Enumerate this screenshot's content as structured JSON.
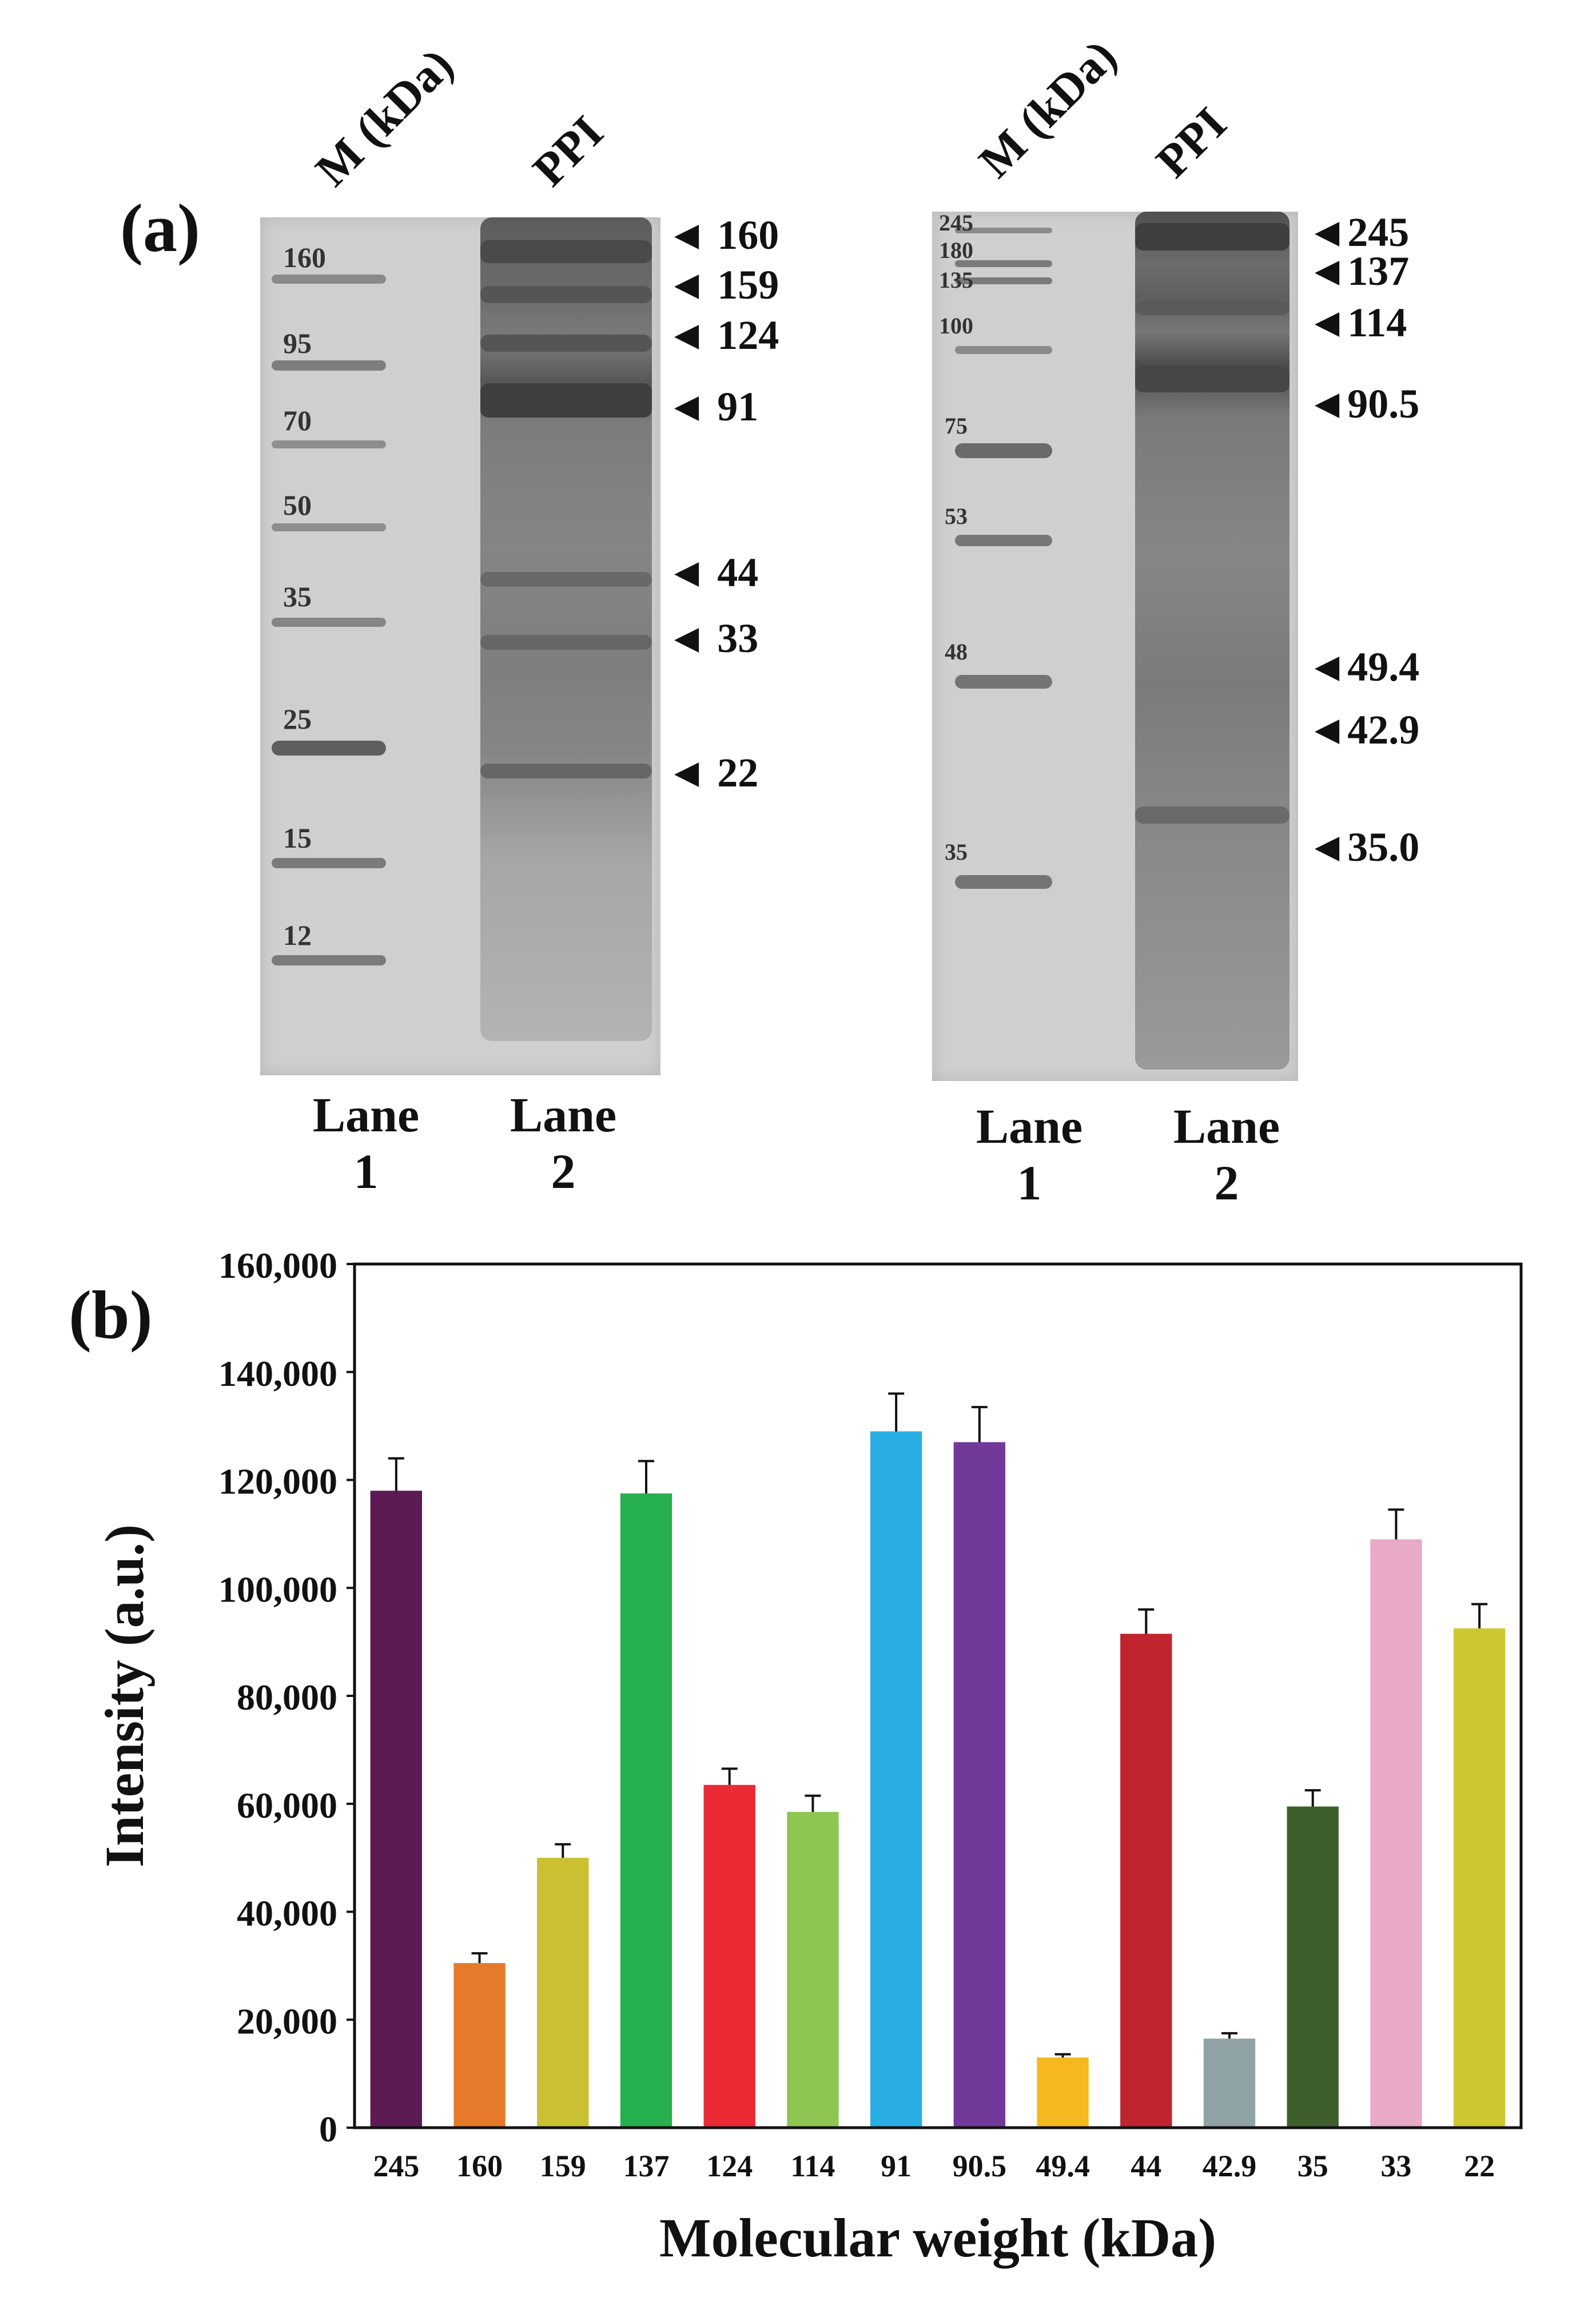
{
  "panel_a": {
    "label": "(a)",
    "gel1": {
      "lane_headers": [
        "M (kDa)",
        "PPI"
      ],
      "marker_labels": [
        "160",
        "95",
        "70",
        "50",
        "35",
        "25",
        "15",
        "12"
      ],
      "band_annotations": [
        "160",
        "159",
        "124",
        "91",
        "44",
        "33",
        "22"
      ],
      "lane_footers": [
        {
          "line1": "Lane",
          "line2": "1"
        },
        {
          "line1": "Lane",
          "line2": "2"
        }
      ]
    },
    "gel2": {
      "lane_headers": [
        "M (kDa)",
        "PPI"
      ],
      "marker_labels": [
        "245",
        "180",
        "135",
        "100",
        "75",
        "53",
        "48",
        "35"
      ],
      "band_annotations": [
        "245",
        "137",
        "114",
        "90.5",
        "49.4",
        "42.9",
        "35.0"
      ],
      "lane_footers": [
        {
          "line1": "Lane",
          "line2": "1"
        },
        {
          "line1": "Lane",
          "line2": "2"
        }
      ]
    },
    "arrow_glyph": "◄"
  },
  "panel_b": {
    "label": "(b)"
  },
  "chart_data": {
    "type": "bar",
    "title": "",
    "xlabel": "Molecular weight (kDa)",
    "ylabel": "Intensity (a.u.)",
    "ylim": [
      0,
      160000
    ],
    "yticks": [
      0,
      20000,
      40000,
      60000,
      80000,
      100000,
      120000,
      140000,
      160000
    ],
    "ytick_labels": [
      "0",
      "20,000",
      "40,000",
      "60,000",
      "80,000",
      "100,000",
      "120,000",
      "140,000",
      "160,000"
    ],
    "categories": [
      "245",
      "160",
      "159",
      "137",
      "124",
      "114",
      "91",
      "90.5",
      "49.4",
      "44",
      "42.9",
      "35",
      "33",
      "22"
    ],
    "values": [
      118000,
      30500,
      50000,
      117500,
      63500,
      58500,
      129000,
      127000,
      13000,
      91500,
      16500,
      59500,
      109000,
      92500
    ],
    "errors": [
      6000,
      1800,
      2500,
      6000,
      3000,
      3000,
      7000,
      6500,
      600,
      4500,
      1000,
      3000,
      5500,
      4500
    ],
    "colors": [
      "#5b1a52",
      "#e57b2a",
      "#c9c132",
      "#26b04e",
      "#ea2a35",
      "#8dc653",
      "#29aee3",
      "#71399a",
      "#f5b81e",
      "#c0242e",
      "#8fa3a6",
      "#3e5e2b",
      "#e9a9c9",
      "#cdc831"
    ]
  }
}
